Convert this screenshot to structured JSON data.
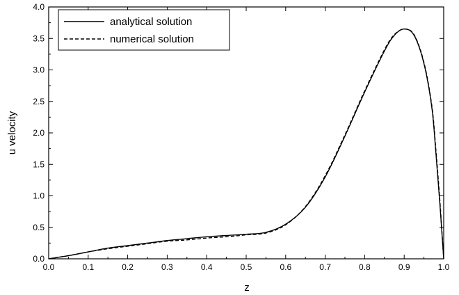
{
  "chart_data": {
    "type": "line",
    "xlabel": "z",
    "ylabel": "u velocity",
    "xlim": [
      0.0,
      1.0
    ],
    "ylim": [
      0.0,
      4.0
    ],
    "x_ticks": [
      "0.0",
      "0.1",
      "0.2",
      "0.3",
      "0.4",
      "0.5",
      "0.6",
      "0.7",
      "0.8",
      "0.9",
      "1.0"
    ],
    "y_ticks": [
      "0.0",
      "0.5",
      "1.0",
      "1.5",
      "2.0",
      "2.5",
      "3.0",
      "3.5",
      "4.0"
    ],
    "grid": false,
    "legend_position": "top-left",
    "series": [
      {
        "name": "analytical solution",
        "style": "solid",
        "color": "#000000",
        "x": [
          0.0,
          0.05,
          0.1,
          0.15,
          0.2,
          0.25,
          0.3,
          0.35,
          0.4,
          0.45,
          0.5,
          0.55,
          0.6,
          0.65,
          0.7,
          0.75,
          0.8,
          0.85,
          0.875,
          0.9,
          0.925,
          0.95,
          0.97,
          0.98,
          0.99,
          1.0
        ],
        "y": [
          0.0,
          0.05,
          0.11,
          0.17,
          0.21,
          0.25,
          0.29,
          0.32,
          0.35,
          0.37,
          0.39,
          0.42,
          0.55,
          0.82,
          1.3,
          1.95,
          2.65,
          3.3,
          3.55,
          3.65,
          3.55,
          3.1,
          2.4,
          1.7,
          0.9,
          0.0
        ]
      },
      {
        "name": "numerical solution",
        "style": "dashed",
        "color": "#000000",
        "x": [
          0.0,
          0.05,
          0.1,
          0.15,
          0.2,
          0.25,
          0.3,
          0.35,
          0.4,
          0.45,
          0.5,
          0.55,
          0.6,
          0.65,
          0.7,
          0.75,
          0.8,
          0.85,
          0.875,
          0.9,
          0.925,
          0.95,
          0.97,
          0.98,
          0.99,
          1.0
        ],
        "y": [
          0.0,
          0.05,
          0.11,
          0.16,
          0.2,
          0.24,
          0.28,
          0.3,
          0.33,
          0.35,
          0.38,
          0.41,
          0.54,
          0.83,
          1.32,
          1.97,
          2.67,
          3.32,
          3.56,
          3.65,
          3.56,
          3.12,
          2.43,
          1.75,
          0.95,
          0.0
        ]
      }
    ]
  }
}
